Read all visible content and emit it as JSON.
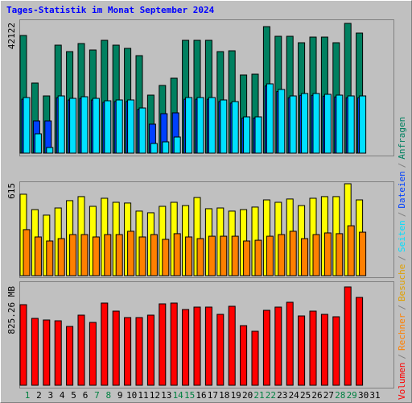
{
  "title": "Tages-Statistik im Monat September 2024",
  "legend_separator": "/",
  "chart_data": [
    {
      "type": "bar",
      "ylim": [
        0,
        42122
      ],
      "yticks": [
        42122
      ],
      "series": [
        {
          "name": "Anfragen",
          "color": "#008060",
          "values": [
            38194,
            22759,
            18574,
            35054,
            32962,
            35578,
            33485,
            36624,
            35054,
            34008,
            31654,
            18835,
            21974,
            24329,
            36624,
            36624,
            36624,
            32962,
            33223,
            25375,
            25637,
            41071,
            37932,
            37932,
            35839,
            37670,
            37670,
            35839,
            42122,
            38978,
            null
          ]
        },
        {
          "name": "Dateien",
          "color": "#0040ff",
          "values": [
            17500,
            10464,
            10464,
            18000,
            17250,
            17750,
            17250,
            16500,
            16750,
            16750,
            14200,
            9418,
            12818,
            13080,
            17500,
            17500,
            17500,
            16750,
            16250,
            11400,
            11400,
            21800,
            20000,
            18000,
            18750,
            18750,
            18500,
            18250,
            18000,
            18000,
            null
          ]
        },
        {
          "name": "Seiten",
          "color": "#00e0ff",
          "values": [
            18050,
            6278,
            1831,
            18574,
            17789,
            18312,
            17789,
            17004,
            17266,
            17266,
            14650,
            3139,
            3662,
            5232,
            18050,
            18050,
            18050,
            17266,
            16742,
            11772,
            11772,
            22498,
            20666,
            18574,
            19358,
            19358,
            19097,
            18835,
            18574,
            18574,
            null
          ]
        }
      ]
    },
    {
      "type": "bar",
      "ylim": [
        0,
        615
      ],
      "yticks": [
        615
      ],
      "series": [
        {
          "name": "Besuche",
          "color": "#ffff00",
          "values": [
            545,
            442,
            405,
            453,
            502,
            529,
            464,
            518,
            491,
            486,
            432,
            421,
            464,
            491,
            469,
            523,
            448,
            453,
            432,
            442,
            459,
            507,
            491,
            513,
            469,
            518,
            529,
            529,
            615,
            507,
            null
          ]
        },
        {
          "name": "Rechner",
          "color": "#ff8000",
          "values": [
            308,
            259,
            232,
            248,
            275,
            275,
            259,
            275,
            275,
            297,
            259,
            275,
            243,
            281,
            259,
            248,
            264,
            264,
            264,
            232,
            237,
            264,
            275,
            297,
            248,
            275,
            286,
            281,
            334,
            291,
            null
          ]
        }
      ]
    },
    {
      "type": "bar",
      "ylim": [
        0,
        825.26
      ],
      "yticks": [
        {
          "value": 825.26,
          "label": "825.26 MB"
        }
      ],
      "categories": [
        "1",
        "2",
        "3",
        "4",
        "5",
        "6",
        "7",
        "8",
        "9",
        "10",
        "11",
        "12",
        "13",
        "14",
        "15",
        "16",
        "17",
        "18",
        "19",
        "20",
        "21",
        "22",
        "23",
        "24",
        "25",
        "26",
        "27",
        "28",
        "29",
        "30",
        "31"
      ],
      "category_colors": [
        "#008040",
        "#000000",
        "#000000",
        "#000000",
        "#000000",
        "#000000",
        "#008040",
        "#008040",
        "#000000",
        "#000000",
        "#000000",
        "#000000",
        "#000000",
        "#008040",
        "#008040",
        "#000000",
        "#000000",
        "#000000",
        "#000000",
        "#000000",
        "#008040",
        "#008040",
        "#000000",
        "#000000",
        "#000000",
        "#000000",
        "#000000",
        "#008040",
        "#008040",
        "#000000",
        "#000000"
      ],
      "series": [
        {
          "name": "Volumen",
          "color": "#ff0000",
          "values": [
            676.4,
            561.4,
            547.9,
            541.1,
            493.8,
            588.5,
            527.6,
            689.9,
            622.3,
            568.2,
            568.2,
            588.5,
            683.2,
            689.9,
            635.8,
            656.1,
            656.1,
            595.2,
            662.9,
            500.5,
            453.2,
            629.1,
            656.1,
            696.7,
            581.7,
            622.3,
            595.2,
            574.9,
            825.26,
            737.3,
            null
          ]
        }
      ]
    }
  ]
}
